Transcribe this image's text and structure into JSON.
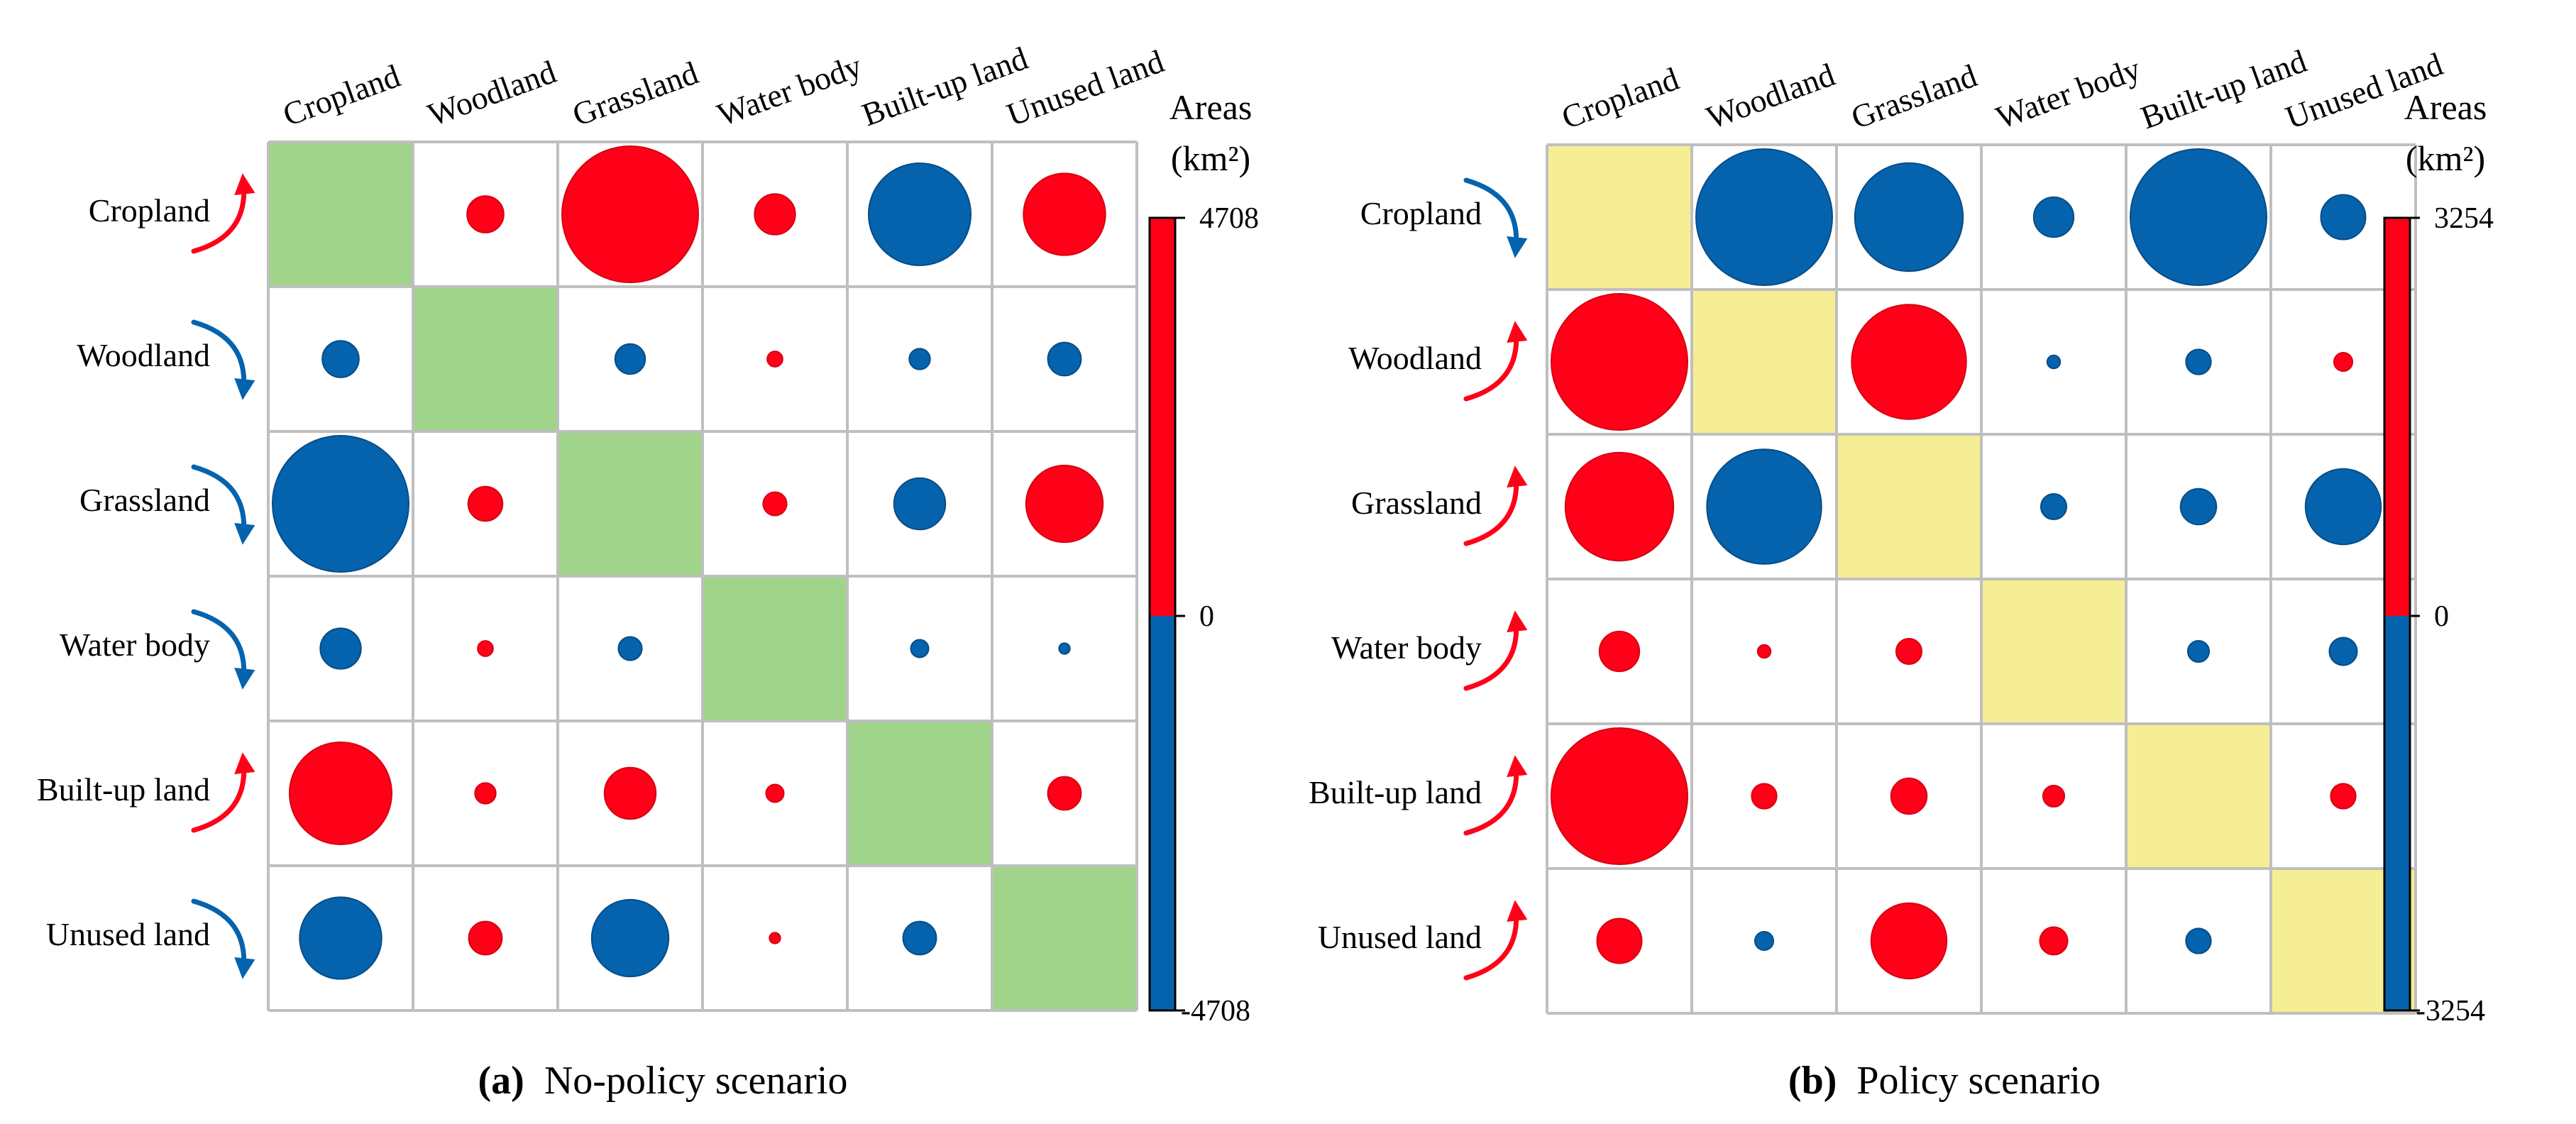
{
  "colors": {
    "positive": "#ff0018",
    "negative": "#0563ad",
    "grid": "#bfbfbf",
    "diag_a": "#a0d48a",
    "diag_b": "#f6ee94"
  },
  "chart_data": [
    {
      "type": "matrix-bubble",
      "caption_label": "(a)",
      "caption_text": "No-policy scenario",
      "legend_title_line1": "Areas",
      "legend_title_line2": "(km²)",
      "scale_max_label": "4708",
      "scale_zero_label": "0",
      "scale_min_label": "-4708",
      "scale_max": 4708,
      "categories": [
        "Cropland",
        "Woodland",
        "Grassland",
        "Water body",
        "Built-up land",
        "Unused land"
      ],
      "row_trend": [
        "up",
        "down",
        "down",
        "down",
        "up",
        "down"
      ],
      "values": [
        [
          null,
          340,
          4708,
          420,
          -2650,
          1700
        ],
        [
          -340,
          null,
          -230,
          60,
          -110,
          -280
        ],
        [
          -4708,
          300,
          null,
          140,
          -670,
          1500
        ],
        [
          -420,
          60,
          -140,
          null,
          -80,
          -30
        ],
        [
          2650,
          110,
          670,
          80,
          null,
          280
        ],
        [
          -1700,
          280,
          -1500,
          30,
          -280,
          null
        ]
      ]
    },
    {
      "type": "matrix-bubble",
      "caption_label": "(b)",
      "caption_text": "Policy scenario",
      "legend_title_line1": "Areas",
      "legend_title_line2": "(km²)",
      "scale_max_label": "3254",
      "scale_zero_label": "0",
      "scale_min_label": "-3254",
      "scale_max": 3254,
      "categories": [
        "Cropland",
        "Woodland",
        "Grassland",
        "Water body",
        "Built-up land",
        "Unused land"
      ],
      "row_trend": [
        "down",
        "up",
        "up",
        "up",
        "up",
        "up"
      ],
      "values": [
        [
          null,
          -3254,
          -2050,
          -280,
          -3254,
          -350
        ],
        [
          3254,
          null,
          2300,
          -30,
          -110,
          60
        ],
        [
          2050,
          -2300,
          null,
          -115,
          -225,
          -1000
        ],
        [
          280,
          30,
          115,
          null,
          -80,
          -135
        ],
        [
          3254,
          110,
          225,
          80,
          null,
          110
        ],
        [
          350,
          -60,
          1000,
          135,
          -110,
          null
        ]
      ]
    }
  ]
}
